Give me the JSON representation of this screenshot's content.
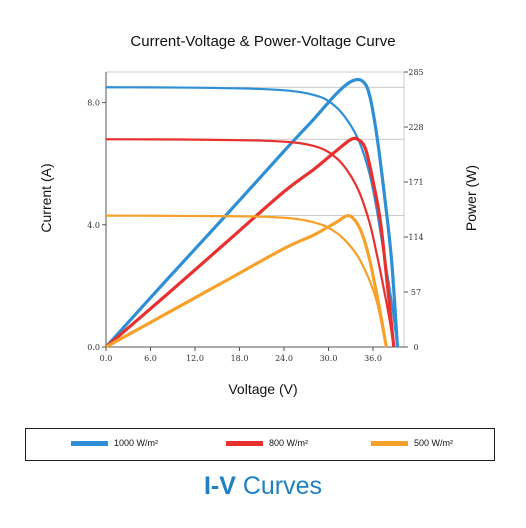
{
  "chart_data": {
    "type": "line",
    "title": "Current-Voltage & Power-Voltage Curve",
    "xlabel": "Voltage (V)",
    "ylabel": "Current (A)",
    "y2label": "Power (W)",
    "xlim": [
      0,
      42
    ],
    "ylim": [
      0,
      9
    ],
    "y2lim": [
      0,
      285
    ],
    "x_ticks": [
      "0.0",
      "6.0",
      "12.0",
      "18.0",
      "24.0",
      "30.0",
      "36.0"
    ],
    "y_ticks": [
      "0.0",
      "4.0",
      "8.0"
    ],
    "y2_ticks": [
      "0",
      "57",
      "114",
      "171",
      "228",
      "285"
    ],
    "legend_position": "bottom",
    "series": [
      {
        "name": "1000 W/m²",
        "color": "#2f8fd6",
        "iv": [
          [
            0,
            8.5
          ],
          [
            10,
            8.49
          ],
          [
            20,
            8.45
          ],
          [
            25,
            8.38
          ],
          [
            28,
            8.25
          ],
          [
            30,
            8.05
          ],
          [
            32,
            7.6
          ],
          [
            34,
            6.8
          ],
          [
            35.5,
            5.7
          ],
          [
            36.5,
            4.5
          ],
          [
            37.5,
            3.0
          ],
          [
            38.5,
            1.5
          ],
          [
            39.3,
            0
          ]
        ],
        "pv": [
          [
            0,
            0
          ],
          [
            8,
            68
          ],
          [
            16,
            135
          ],
          [
            24,
            203
          ],
          [
            28,
            236
          ],
          [
            31,
            262
          ],
          [
            33,
            275
          ],
          [
            34.5,
            276
          ],
          [
            35.5,
            262
          ],
          [
            36.5,
            220
          ],
          [
            37.5,
            160
          ],
          [
            38.5,
            90
          ],
          [
            39.3,
            0
          ]
        ]
      },
      {
        "name": "800 W/m²",
        "color": "#e8312f",
        "iv": [
          [
            0,
            6.8
          ],
          [
            10,
            6.79
          ],
          [
            20,
            6.76
          ],
          [
            25,
            6.7
          ],
          [
            28,
            6.58
          ],
          [
            30,
            6.38
          ],
          [
            32,
            5.95
          ],
          [
            34,
            5.15
          ],
          [
            35.5,
            4.1
          ],
          [
            36.5,
            3.05
          ],
          [
            37.5,
            1.85
          ],
          [
            38.3,
            0.8
          ],
          [
            38.8,
            0
          ]
        ],
        "pv": [
          [
            0,
            0
          ],
          [
            8,
            53
          ],
          [
            16,
            107
          ],
          [
            24,
            161
          ],
          [
            28,
            184
          ],
          [
            31,
            203
          ],
          [
            33,
            215
          ],
          [
            34,
            215
          ],
          [
            35,
            205
          ],
          [
            36,
            172
          ],
          [
            37,
            130
          ],
          [
            38,
            60
          ],
          [
            38.8,
            0
          ]
        ]
      },
      {
        "name": "500 W/m²",
        "color": "#f5a12b",
        "iv": [
          [
            0,
            4.3
          ],
          [
            10,
            4.29
          ],
          [
            20,
            4.27
          ],
          [
            25,
            4.21
          ],
          [
            28,
            4.08
          ],
          [
            30,
            3.9
          ],
          [
            32,
            3.55
          ],
          [
            34,
            2.95
          ],
          [
            35.5,
            2.2
          ],
          [
            36.5,
            1.5
          ],
          [
            37.3,
            0.6
          ],
          [
            37.8,
            0
          ]
        ],
        "pv": [
          [
            0,
            0
          ],
          [
            8,
            34
          ],
          [
            16,
            68
          ],
          [
            24,
            102
          ],
          [
            28,
            116
          ],
          [
            31,
            129
          ],
          [
            32.5,
            136
          ],
          [
            33.5,
            132
          ],
          [
            34.5,
            118
          ],
          [
            35.5,
            92
          ],
          [
            36.5,
            55
          ],
          [
            37.3,
            22
          ],
          [
            37.8,
            0
          ]
        ]
      }
    ]
  },
  "caption": {
    "bold": "I-V",
    "rest": " Curves"
  }
}
